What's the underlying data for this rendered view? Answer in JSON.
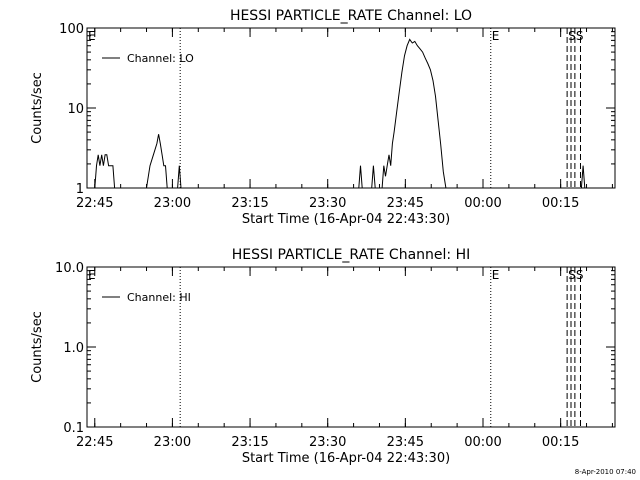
{
  "footer": {
    "timestamp": "8-Apr-2010 07:40"
  },
  "chart_data": [
    {
      "type": "line",
      "title": "HESSI PARTICLE_RATE Channel: LO",
      "xlabel": "Start Time (16-Apr-04 22:43:30)",
      "ylabel": "Counts/sec",
      "yscale": "log",
      "ylim": [
        1,
        100
      ],
      "y_ticks": [
        {
          "value": 1,
          "label": "1"
        },
        {
          "value": 10,
          "label": "10"
        },
        {
          "value": 100,
          "label": "100"
        }
      ],
      "xlim": [
        "22:43:30",
        "00:25:30"
      ],
      "x_ticks": [
        "22:45",
        "23:00",
        "23:15",
        "23:30",
        "23:45",
        "00:00",
        "00:15"
      ],
      "grid": false,
      "legend": {
        "position": "top-left",
        "entries": [
          "Channel: LO"
        ]
      },
      "series": [
        {
          "name": "Channel: LO",
          "points": [
            [
              "22:43:30",
              1
            ],
            [
              "22:44:00",
              1
            ],
            [
              "22:45:00",
              1
            ],
            [
              "22:45:20",
              1.9
            ],
            [
              "22:45:40",
              2.6
            ],
            [
              "22:46:00",
              1.9
            ],
            [
              "22:46:20",
              2.6
            ],
            [
              "22:46:40",
              1.9
            ],
            [
              "22:47:00",
              2.6
            ],
            [
              "22:47:20",
              2.6
            ],
            [
              "22:47:40",
              1.9
            ],
            [
              "22:48:00",
              1.9
            ],
            [
              "22:48:30",
              1.9
            ],
            [
              "22:48:50",
              1
            ],
            [
              "22:55:00",
              1
            ],
            [
              "22:55:40",
              1.9
            ],
            [
              "22:56:20",
              2.6
            ],
            [
              "22:57:00",
              3.6
            ],
            [
              "22:57:20",
              4.7
            ],
            [
              "22:57:40",
              3.6
            ],
            [
              "22:58:00",
              2.6
            ],
            [
              "22:58:20",
              1.9
            ],
            [
              "22:58:40",
              1.9
            ],
            [
              "22:59:00",
              1
            ],
            [
              "23:00:30",
              1
            ],
            [
              "23:01:00",
              1
            ],
            [
              "23:01:20",
              1.9
            ],
            [
              "23:01:40",
              1
            ],
            [
              "23:35:30",
              1
            ],
            [
              "23:36:00",
              1
            ],
            [
              "23:36:20",
              1.9
            ],
            [
              "23:36:40",
              1
            ],
            [
              "23:38:30",
              1
            ],
            [
              "23:38:50",
              1.9
            ],
            [
              "23:39:10",
              1
            ],
            [
              "23:40:30",
              1
            ],
            [
              "23:40:50",
              1.9
            ],
            [
              "23:41:10",
              1.4
            ],
            [
              "23:41:30",
              1.9
            ],
            [
              "23:41:50",
              2.6
            ],
            [
              "23:42:10",
              1.9
            ],
            [
              "23:42:30",
              3.6
            ],
            [
              "23:42:50",
              5
            ],
            [
              "23:43:20",
              9
            ],
            [
              "23:43:50",
              16
            ],
            [
              "23:44:20",
              28
            ],
            [
              "23:44:50",
              45
            ],
            [
              "23:45:20",
              60
            ],
            [
              "23:45:50",
              72
            ],
            [
              "23:46:20",
              65
            ],
            [
              "23:46:50",
              68
            ],
            [
              "23:47:20",
              60
            ],
            [
              "23:47:50",
              55
            ],
            [
              "23:48:20",
              50
            ],
            [
              "23:48:50",
              42
            ],
            [
              "23:49:20",
              36
            ],
            [
              "23:49:50",
              30
            ],
            [
              "23:50:20",
              22
            ],
            [
              "23:50:50",
              14
            ],
            [
              "23:51:20",
              7
            ],
            [
              "23:51:50",
              3.5
            ],
            [
              "23:52:20",
              1.6
            ],
            [
              "23:52:50",
              1
            ],
            [
              "00:19:00",
              1
            ],
            [
              "00:19:20",
              1.9
            ],
            [
              "00:19:40",
              1
            ]
          ]
        }
      ],
      "annotations": [
        {
          "text": "E",
          "x": "22:43:30",
          "line": false
        },
        {
          "text": "",
          "x": "23:01:30",
          "line": "dotted"
        },
        {
          "text": "E",
          "x": "00:01:30",
          "line": "dotted"
        },
        {
          "text": "S",
          "x": "00:16:15",
          "line": "dashed"
        },
        {
          "text": "",
          "x": "00:17:00",
          "line": "dashed"
        },
        {
          "text": "S",
          "x": "00:17:45",
          "line": "dashed"
        },
        {
          "text": "",
          "x": "00:18:50",
          "line": "dashed"
        }
      ]
    },
    {
      "type": "line",
      "title": "HESSI PARTICLE_RATE Channel: HI",
      "xlabel": "Start Time (16-Apr-04 22:43:30)",
      "ylabel": "Counts/sec",
      "yscale": "log",
      "ylim": [
        0.1,
        10
      ],
      "y_ticks": [
        {
          "value": 0.1,
          "label": "0.1"
        },
        {
          "value": 1,
          "label": "1.0"
        },
        {
          "value": 10,
          "label": "10.0"
        }
      ],
      "xlim": [
        "22:43:30",
        "00:25:30"
      ],
      "x_ticks": [
        "22:45",
        "23:00",
        "23:15",
        "23:30",
        "23:45",
        "00:00",
        "00:15"
      ],
      "grid": false,
      "legend": {
        "position": "top-left",
        "entries": [
          "Channel: HI"
        ]
      },
      "series": [
        {
          "name": "Channel: HI",
          "points": []
        }
      ],
      "annotations": [
        {
          "text": "E",
          "x": "22:43:30",
          "line": false
        },
        {
          "text": "",
          "x": "23:01:30",
          "line": "dotted"
        },
        {
          "text": "E",
          "x": "00:01:30",
          "line": "dotted"
        },
        {
          "text": "S",
          "x": "00:16:15",
          "line": "dashed"
        },
        {
          "text": "",
          "x": "00:17:00",
          "line": "dashed"
        },
        {
          "text": "S",
          "x": "00:17:45",
          "line": "dashed"
        },
        {
          "text": "",
          "x": "00:18:50",
          "line": "dashed"
        }
      ]
    }
  ]
}
